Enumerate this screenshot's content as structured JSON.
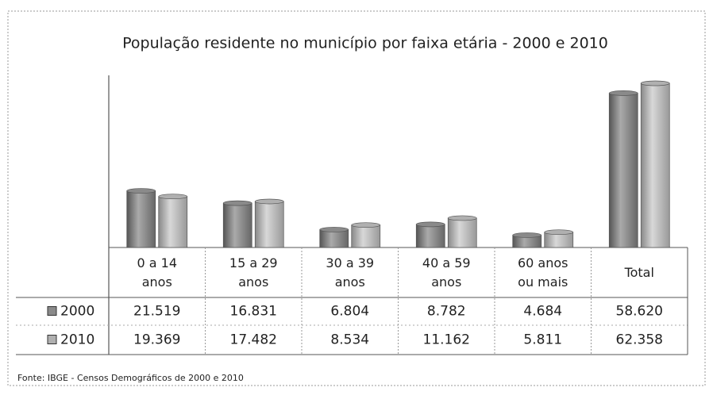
{
  "chart_data": {
    "type": "bar",
    "title": "População residente no município por faixa etária - 2000 e 2010",
    "categories": [
      "0 a 14 anos",
      "15 a 29 anos",
      "30 a 39 anos",
      "40 a 59 anos",
      "60 anos ou mais",
      "Total"
    ],
    "series": [
      {
        "name": "2000",
        "color": "#8a8a8a",
        "values": [
          21519,
          16831,
          6804,
          8782,
          4684,
          58620
        ],
        "value_labels": [
          "21.519",
          "16.831",
          "6.804",
          "8.782",
          "4.684",
          "58.620"
        ]
      },
      {
        "name": "2010",
        "color": "#b0b0b0",
        "values": [
          19369,
          17482,
          8534,
          11162,
          5811,
          62358
        ],
        "value_labels": [
          "19.369",
          "17.482",
          "8.534",
          "11.162",
          "5.811",
          "62.358"
        ]
      }
    ],
    "source": "Fonte: IBGE - Censos Demográficos de 2000 e 2010"
  }
}
